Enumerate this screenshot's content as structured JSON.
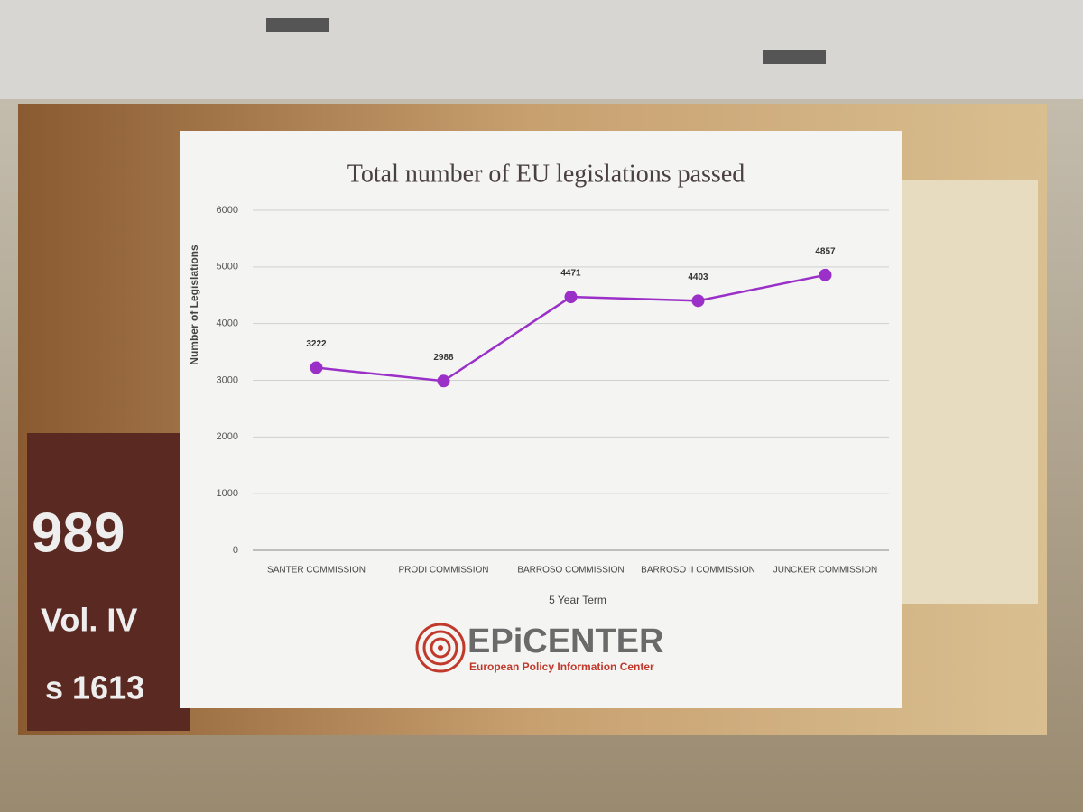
{
  "chart_data": {
    "type": "line",
    "title": "Total number of EU legislations passed",
    "x_label": "5 Year Term",
    "y_label": "Number of Legislations",
    "categories": [
      "SANTER COMMISSION",
      "PRODI COMMISSION",
      "BARROSO COMMISSION",
      "BARROSO II COMMISSION",
      "JUNCKER COMMISSION"
    ],
    "values": [
      3222,
      2988,
      4471,
      4403,
      4857
    ],
    "color": "#9b30c8",
    "ylim": [
      0,
      6000
    ],
    "yticks": [
      0,
      1000,
      2000,
      3000,
      4000,
      5000,
      6000
    ],
    "grid": true
  },
  "logo": {
    "name": "EPiCENTER",
    "subtitle": "European Policy Information Center"
  },
  "background_text": [
    "989",
    "Vol. IV",
    "s 1613"
  ]
}
